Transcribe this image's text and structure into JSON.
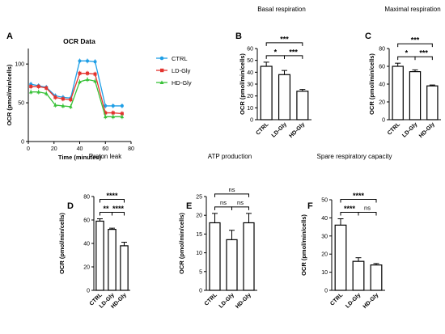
{
  "chart_data": [
    {
      "panel": "A",
      "type": "line",
      "title": "OCR Data",
      "xlabel": "Time (minutes)",
      "ylabel": "OCR (pmol/min/cells)",
      "xlim": [
        0,
        80
      ],
      "ylim": [
        0,
        120
      ],
      "xticks": [
        0,
        20,
        40,
        60,
        80
      ],
      "yticks": [
        0,
        50,
        100
      ],
      "grid": false,
      "legend_position": "right",
      "x": [
        2,
        8,
        14,
        21,
        27,
        33,
        40,
        46,
        52,
        60,
        66,
        73
      ],
      "series": [
        {
          "name": "CTRL",
          "color": "#1f9fe6",
          "marker": "circle",
          "values": [
            74,
            72,
            70,
            59,
            57,
            56,
            104,
            104,
            103,
            46,
            46,
            46
          ]
        },
        {
          "name": "LD-Gly",
          "color": "#e3342f",
          "marker": "square",
          "values": [
            71,
            71,
            69,
            57,
            55,
            54,
            88,
            88,
            87,
            37,
            37,
            36
          ]
        },
        {
          "name": "HD-Gly",
          "color": "#3ac23a",
          "marker": "triangle",
          "values": [
            64,
            64,
            62,
            47,
            46,
            45,
            77,
            80,
            78,
            32,
            32,
            32
          ]
        }
      ]
    },
    {
      "panel": "B",
      "type": "bar",
      "title": "Basal respiration",
      "ylabel": "OCR (pmol/min/cells)",
      "categories": [
        "CTRL",
        "LD-Gly",
        "HD-Gly"
      ],
      "values": [
        45,
        38,
        24
      ],
      "errors": [
        3.5,
        3.5,
        1.5
      ],
      "ylim": [
        0,
        60
      ],
      "yticks": [
        0,
        10,
        20,
        30,
        40,
        50,
        60
      ],
      "significance": [
        {
          "from": 0,
          "to": 1,
          "label": "*"
        },
        {
          "from": 1,
          "to": 2,
          "label": "***"
        },
        {
          "from": 0,
          "to": 2,
          "label": "***"
        }
      ]
    },
    {
      "panel": "C",
      "type": "bar",
      "title": "Maximal respiration",
      "ylabel": "OCR (pmol/min/cells)",
      "categories": [
        "CTRL",
        "LD-Gly",
        "HD-Gly"
      ],
      "values": [
        60,
        54,
        38
      ],
      "errors": [
        3.5,
        2,
        1
      ],
      "ylim": [
        0,
        80
      ],
      "yticks": [
        0,
        20,
        40,
        60,
        80
      ],
      "significance": [
        {
          "from": 0,
          "to": 1,
          "label": "*"
        },
        {
          "from": 1,
          "to": 2,
          "label": "***"
        },
        {
          "from": 0,
          "to": 2,
          "label": "***"
        }
      ]
    },
    {
      "panel": "D",
      "type": "bar",
      "title": "Proton leak",
      "ylabel": "OCR (pmol/min/cells)",
      "categories": [
        "CTRL",
        "LD-Gly",
        "HD-Gly"
      ],
      "values": [
        59,
        52,
        38
      ],
      "errors": [
        2,
        1,
        3
      ],
      "ylim": [
        0,
        80
      ],
      "yticks": [
        0,
        20,
        40,
        60,
        80
      ],
      "significance": [
        {
          "from": 0,
          "to": 1,
          "label": "**"
        },
        {
          "from": 1,
          "to": 2,
          "label": "****"
        },
        {
          "from": 0,
          "to": 2,
          "label": "****"
        }
      ]
    },
    {
      "panel": "E",
      "type": "bar",
      "title": "ATP production",
      "ylabel": "OCR (pmol/min/cells)",
      "categories": [
        "CTRL",
        "LD-Gly",
        "HD-Gly"
      ],
      "values": [
        18,
        13.5,
        18
      ],
      "errors": [
        2.5,
        2.5,
        2.5
      ],
      "ylim": [
        0,
        25
      ],
      "yticks": [
        0,
        5,
        10,
        15,
        20,
        25
      ],
      "significance": [
        {
          "from": 0,
          "to": 1,
          "label": "ns"
        },
        {
          "from": 1,
          "to": 2,
          "label": "ns"
        },
        {
          "from": 0,
          "to": 2,
          "label": "ns"
        }
      ]
    },
    {
      "panel": "F",
      "type": "bar",
      "title": "Spare respiratory capacity",
      "ylabel": "OCR (pmol/min/cells)",
      "categories": [
        "CTRL",
        "LD-Gly",
        "HD-Gly"
      ],
      "values": [
        36,
        16,
        14
      ],
      "errors": [
        3.5,
        2,
        0.8
      ],
      "ylim": [
        0,
        50
      ],
      "yticks": [
        0,
        10,
        20,
        30,
        40,
        50
      ],
      "significance": [
        {
          "from": 0,
          "to": 1,
          "label": "****"
        },
        {
          "from": 1,
          "to": 2,
          "label": "ns"
        },
        {
          "from": 0,
          "to": 2,
          "label": "****"
        }
      ]
    }
  ]
}
